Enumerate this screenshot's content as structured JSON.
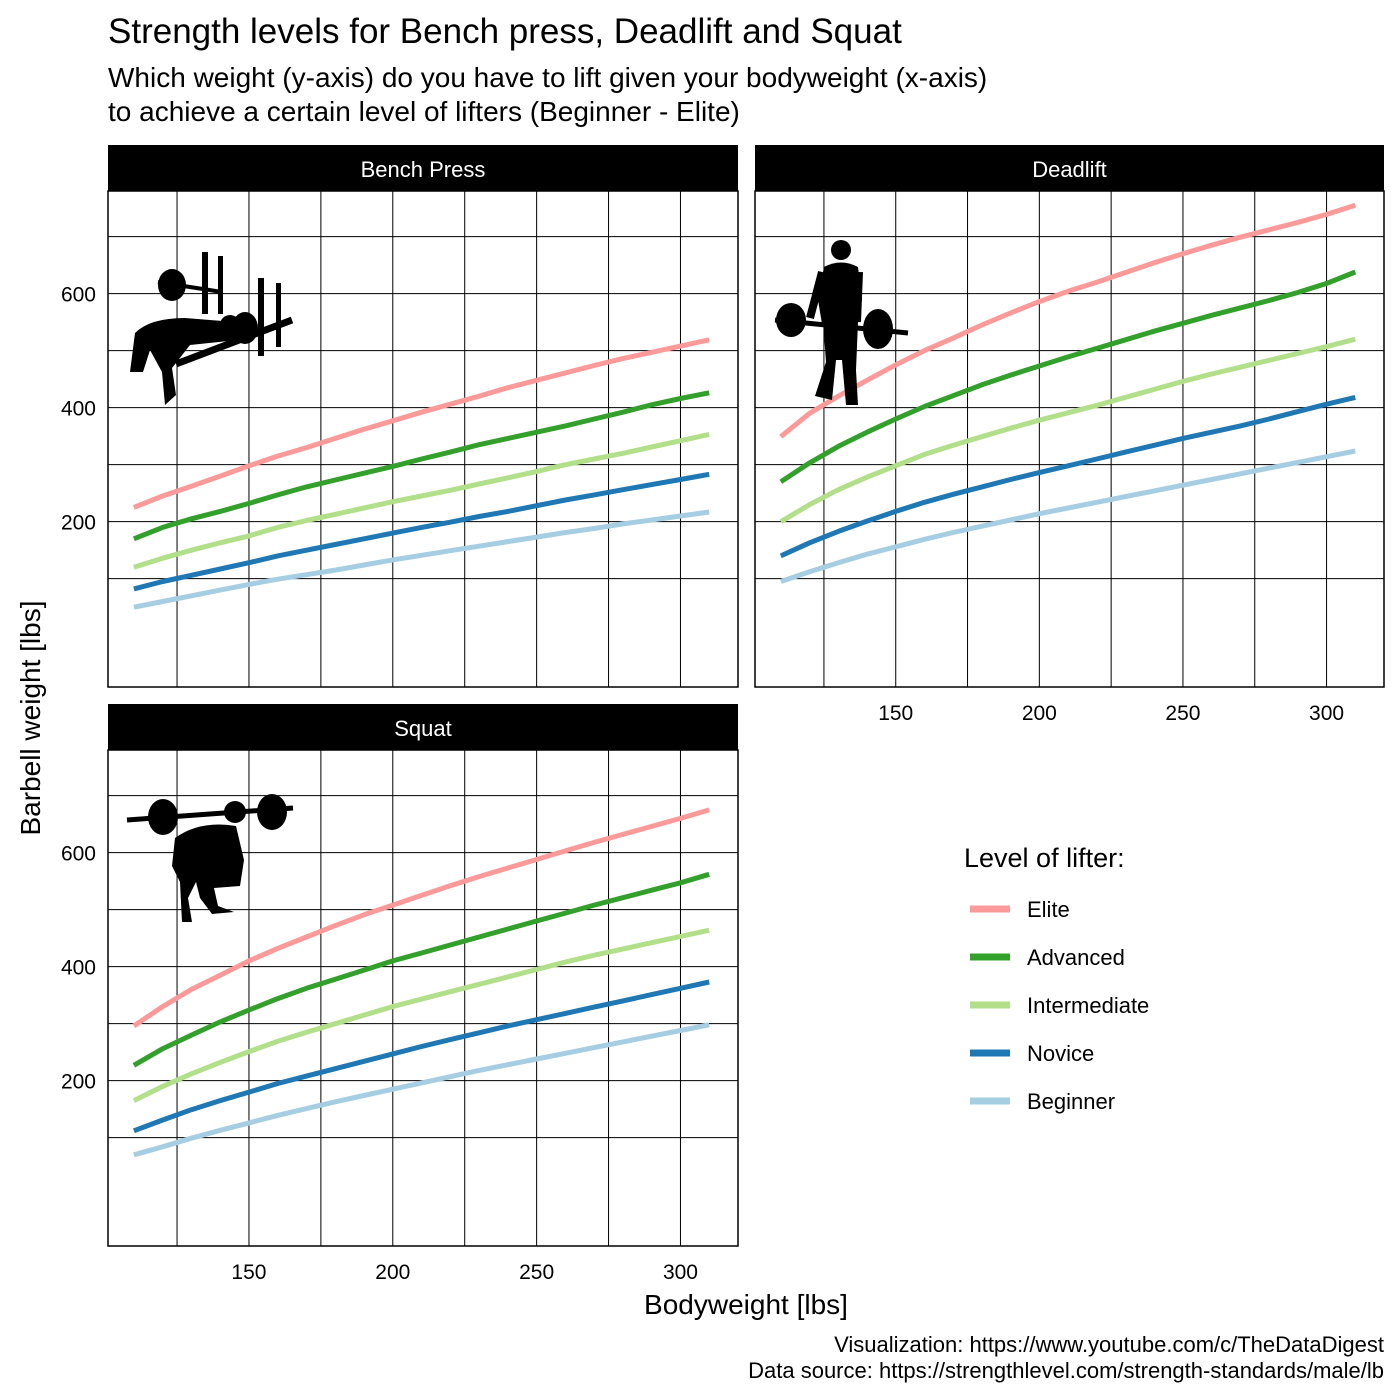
{
  "title": "Strength levels for Bench press, Deadlift and Squat",
  "subtitle_lines": [
    "Which weight (y-axis) do you have to lift given your bodyweight (x-axis)",
    "to achieve a certain level of lifters (Beginner - Elite)"
  ],
  "caption_lines": [
    "Visualization: https://www.youtube.com/c/TheDataDigest",
    "Data source: https://strengthlevel.com/strength-standards/male/lb"
  ],
  "colors": {
    "Elite": "#fb9a99",
    "Advanced": "#33a02c",
    "Intermediate": "#b2df8a",
    "Novice": "#1f78b4",
    "Beginner": "#a6cee3",
    "strip_bg": "#000000",
    "strip_text": "#ffffff",
    "grid": "#000000"
  },
  "chart_data": {
    "type": "line",
    "xlabel": "Bodyweight [lbs]",
    "ylabel": "Barbell weight [lbs]",
    "xlim": [
      101,
      320
    ],
    "ylim": [
      -90,
      780
    ],
    "xticks": [
      150,
      200,
      250,
      300
    ],
    "yticks": [
      200,
      400,
      600
    ],
    "grid": true,
    "legend_title": "Level of lifter:",
    "legend_position": "right",
    "levels": [
      "Elite",
      "Advanced",
      "Intermediate",
      "Novice",
      "Beginner"
    ],
    "x": [
      110,
      120,
      130,
      140,
      150,
      160,
      170,
      180,
      190,
      200,
      210,
      220,
      230,
      240,
      250,
      260,
      270,
      280,
      290,
      300,
      310
    ],
    "panels": [
      {
        "name": "Bench Press",
        "icon": "bench-press-icon",
        "series": [
          {
            "name": "Elite",
            "values": [
              225,
              245,
              262,
              280,
              298,
              315,
              330,
              346,
              362,
              377,
              392,
              406,
              420,
              435,
              448,
              461,
              474,
              486,
              497,
              508,
              519
            ]
          },
          {
            "name": "Advanced",
            "values": [
              170,
              190,
              205,
              218,
              232,
              247,
              261,
              273,
              285,
              297,
              310,
              322,
              335,
              346,
              357,
              368,
              380,
              392,
              405,
              416,
              426
            ]
          },
          {
            "name": "Intermediate",
            "values": [
              120,
              136,
              150,
              163,
              175,
              190,
              202,
              213,
              224,
              235,
              245,
              255,
              266,
              277,
              288,
              300,
              310,
              320,
              331,
              342,
              353
            ]
          },
          {
            "name": "Novice",
            "values": [
              82,
              95,
              106,
              117,
              128,
              140,
              150,
              160,
              170,
              180,
              190,
              199,
              209,
              218,
              228,
              238,
              247,
              256,
              265,
              274,
              283
            ]
          },
          {
            "name": "Beginner",
            "values": [
              50,
              60,
              70,
              80,
              90,
              99,
              107,
              115,
              124,
              133,
              141,
              149,
              157,
              165,
              173,
              181,
              188,
              196,
              203,
              210,
              217
            ]
          }
        ]
      },
      {
        "name": "Deadlift",
        "icon": "deadlift-icon",
        "series": [
          {
            "name": "Elite",
            "values": [
              349,
              390,
              420,
              448,
              475,
              500,
              522,
              545,
              566,
              586,
              604,
              620,
              637,
              654,
              670,
              685,
              699,
              712,
              725,
              739,
              755
            ]
          },
          {
            "name": "Advanced",
            "values": [
              270,
              303,
              332,
              357,
              380,
              402,
              421,
              440,
              457,
              473,
              489,
              504,
              519,
              534,
              548,
              562,
              575,
              588,
              602,
              618,
              638
            ]
          },
          {
            "name": "Intermediate",
            "values": [
              200,
              230,
              256,
              278,
              298,
              318,
              334,
              349,
              364,
              378,
              391,
              404,
              418,
              432,
              446,
              459,
              471,
              483,
              495,
              507,
              520
            ]
          },
          {
            "name": "Novice",
            "values": [
              140,
              163,
              183,
              201,
              218,
              234,
              248,
              261,
              274,
              286,
              298,
              310,
              322,
              334,
              346,
              357,
              368,
              380,
              393,
              406,
              418
            ]
          },
          {
            "name": "Beginner",
            "values": [
              95,
              112,
              128,
              143,
              156,
              169,
              181,
              192,
              203,
              214,
              224,
              234,
              244,
              254,
              264,
              274,
              284,
              294,
              304,
              314,
              324
            ]
          }
        ]
      },
      {
        "name": "Squat",
        "icon": "squat-icon",
        "series": [
          {
            "name": "Elite",
            "values": [
              296,
              330,
              360,
              385,
              410,
              432,
              452,
              472,
              491,
              508,
              525,
              542,
              558,
              573,
              588,
              603,
              618,
              632,
              646,
              660,
              675
            ]
          },
          {
            "name": "Advanced",
            "values": [
              227,
              256,
              280,
              303,
              324,
              344,
              362,
              378,
              394,
              410,
              424,
              438,
              452,
              466,
              480,
              494,
              508,
              521,
              534,
              547,
              562
            ]
          },
          {
            "name": "Intermediate",
            "values": [
              165,
              190,
              212,
              232,
              251,
              269,
              285,
              300,
              315,
              330,
              343,
              356,
              369,
              382,
              395,
              408,
              420,
              431,
              442,
              453,
              464
            ]
          },
          {
            "name": "Novice",
            "values": [
              112,
              131,
              149,
              165,
              180,
              195,
              208,
              221,
              234,
              247,
              260,
              272,
              284,
              296,
              307,
              318,
              329,
              340,
              351,
              362,
              373
            ]
          },
          {
            "name": "Beginner",
            "values": [
              70,
              84,
              99,
              113,
              126,
              139,
              151,
              163,
              174,
              185,
              196,
              207,
              218,
              228,
              238,
              248,
              258,
              268,
              278,
              288,
              298
            ]
          }
        ]
      }
    ]
  }
}
